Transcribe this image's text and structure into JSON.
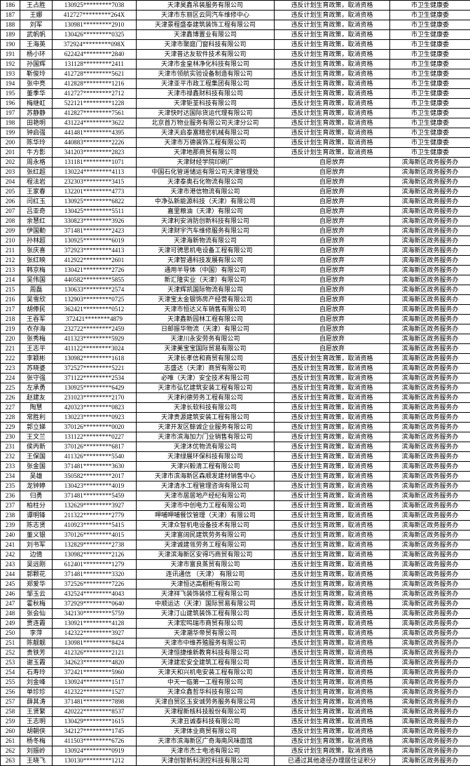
{
  "rows": [
    {
      "n": "186",
      "name": "王占胜",
      "id": "130925*********7038",
      "org": "天津昊鑫吊装服务有限公司",
      "reason": "违反计划生育政策，取消资格",
      "dept": "市卫生健康委"
    },
    {
      "n": "187",
      "name": "王娜",
      "id": "412727*********264X",
      "org": "天津市东丽区云同汽车维修中心",
      "reason": "违反计划生育政策，取消资格",
      "dept": "市卫生健康委"
    },
    {
      "n": "188",
      "name": "刘军",
      "id": "130981*********2910",
      "org": "天津景程盛泰建筑装饰工程有限公司",
      "reason": "违反计划生育政策，取消资格",
      "dept": "市卫生健康委"
    },
    {
      "n": "189",
      "name": "武帆帆",
      "id": "130426*********0325",
      "org": "天津鑫博置业有限公司",
      "reason": "违反计划生育政策，取消资格",
      "dept": "市卫生健康委"
    },
    {
      "n": "190",
      "name": "王海英",
      "id": "372924*********098X",
      "org": "天津市聚庭门窗科技有限公司",
      "reason": "违反计划生育政策，取消资格",
      "dept": "市卫生健康委"
    },
    {
      "n": "191",
      "name": "杨小环",
      "id": "622424*********2840",
      "org": "天津普达友软件技术有限公司",
      "reason": "违反计划生育政策，取消资格",
      "dept": "市卫生健康委"
    },
    {
      "n": "192",
      "name": "孙国辉",
      "id": "131128*********2411",
      "org": "天津市金皇林净化科技有限公司",
      "reason": "违反计划生育政策，取消资格",
      "dept": "市卫生健康委"
    },
    {
      "n": "193",
      "name": "靳俊玲",
      "id": "412728*********5621",
      "org": "天津市领航实验设备制造有限公司",
      "reason": "违反计划生育政策，取消资格",
      "dept": "市卫生健康委"
    },
    {
      "n": "194",
      "name": "张中亮",
      "id": "412828*********1216",
      "org": "天津亚平市政工程集团有限公司",
      "reason": "违反计划生育政策，取消资格",
      "dept": "市卫生健康委"
    },
    {
      "n": "195",
      "name": "董季华",
      "id": "412727*********2712",
      "org": "天津市禄鑫财科技有限公司",
      "reason": "违反计划生育政策，取消资格",
      "dept": "市卫生健康委"
    },
    {
      "n": "196",
      "name": "梅继虹",
      "id": "522121*********1228",
      "org": "天津钜荃科技有限公司",
      "reason": "违反计划生育政策，取消资格",
      "dept": "市卫生健康委"
    },
    {
      "n": "197",
      "name": "苏静静",
      "id": "412827*********7561",
      "org": "天津快时达国际货运代理有限公司",
      "reason": "违反计划生育政策，取消资格",
      "dept": "市卫生健康委"
    },
    {
      "n": "198",
      "name": "田艳明",
      "id": "431224*********3622",
      "org": "北京首万物业服务有限公司天津分公司",
      "reason": "违反计划生育政策，取消资格",
      "dept": "市卫生健康委"
    },
    {
      "n": "199",
      "name": "钟启强",
      "id": "441481*********4395",
      "org": "天津天启泰富精密机械有限公司",
      "reason": "违反计划生育政策，取消资格",
      "dept": "市卫生健康委"
    },
    {
      "n": "200",
      "name": "陈华玲",
      "id": "440883*********2226",
      "org": "天津市万德装饰工程有限公司",
      "reason": "违反计划生育政策，取消资格",
      "dept": "市卫生健康委"
    },
    {
      "n": "201",
      "name": "牛方影",
      "id": "341203*********2823",
      "org": "天津地那商贸有限公司",
      "reason": "违反计划生育政策，取消资格",
      "dept": "市卫生健康委"
    },
    {
      "n": "202",
      "name": "周永格",
      "id": "131181*********1071",
      "org": "天津财经学院印刷厂",
      "reason": "自愿放弃",
      "dept": "滨海新区政务服务办"
    },
    {
      "n": "203",
      "name": "张红超",
      "id": "130224*********4113",
      "org": "中国石化管道储运有限公司天津管理处",
      "reason": "自愿放弃",
      "dept": "滨海新区政务服务办"
    },
    {
      "n": "204",
      "name": "程法岩",
      "id": "232303*********3415",
      "org": "天津泰奥石化物流有限公司",
      "reason": "自愿放弃",
      "dept": "滨海新区政务服务办"
    },
    {
      "n": "205",
      "name": "王家春",
      "id": "132201*********4773",
      "org": "天津市港信物流有限公司",
      "reason": "自愿放弃",
      "dept": "滨海新区政务服务办"
    },
    {
      "n": "206",
      "name": "闫红玉",
      "id": "130925*********6822",
      "org": "中净弘新能源科技（天津）有限公司",
      "reason": "自愿放弃",
      "dept": "滨海新区政务服务办"
    },
    {
      "n": "207",
      "name": "吕亚奇",
      "id": "130425*********5511",
      "org": "嘉里粮油（天津）有限公司",
      "reason": "自愿放弃",
      "dept": "滨海新区政务服务办"
    },
    {
      "n": "208",
      "name": "余慧红",
      "id": "330823*********3926",
      "org": "天津利安消防创新科技有限公司",
      "reason": "自愿放弃",
      "dept": "滨海新区政务服务办"
    },
    {
      "n": "209",
      "name": "伊国勤",
      "id": "371481*********2423",
      "org": "天津财宇汽车维修服务有限公司",
      "reason": "自愿放弃",
      "dept": "滨海新区政务服务办"
    },
    {
      "n": "210",
      "name": "孙林超",
      "id": "130925*********6019",
      "org": "天津海新物流有限公司",
      "reason": "自愿放弃",
      "dept": "滨海新区政务服务办"
    },
    {
      "n": "211",
      "name": "张庆喜",
      "id": "372923*********4413",
      "org": "天津可骋思机电设备工程有限公司",
      "reason": "自愿放弃",
      "dept": "滨海新区政务服务办"
    },
    {
      "n": "212",
      "name": "张红映",
      "id": "412922*********2601",
      "org": "天津智通科技发展有限公司",
      "reason": "自愿放弃",
      "dept": "滨海新区政务服务办"
    },
    {
      "n": "213",
      "name": "韩京梅",
      "id": "130421*********2726",
      "org": "通用半导体（中国）有限公司",
      "reason": "自愿放弃",
      "dept": "滨海新区政务服务办"
    },
    {
      "n": "214",
      "name": "吴伟国",
      "id": "440582*********5855",
      "org": "新汇隆实业（天津）有限公司",
      "reason": "自愿放弃",
      "dept": "滨海新区政务服务办"
    },
    {
      "n": "215",
      "name": "周磊",
      "id": "130633*********2574",
      "org": "天津辉凯国际物流有限公司",
      "reason": "自愿放弃",
      "dept": "滨海新区政务服务办"
    },
    {
      "n": "216",
      "name": "吴雪欣",
      "id": "132903*********0725",
      "org": "天津宝太金银饰房产经营有限公司",
      "reason": "自愿放弃",
      "dept": "滨海新区政务服务办"
    },
    {
      "n": "217",
      "name": "胡俸民",
      "id": "362421*********0512",
      "org": "天津市恒达义车销售有限公司",
      "reason": "自愿放弃",
      "dept": "滨海新区政务服务办"
    },
    {
      "n": "218",
      "name": "王吞军",
      "id": "372421********4879",
      "org": "天津鑫新园林工程有限公司",
      "reason": "自愿放弃",
      "dept": "滨海新区政务服务办"
    },
    {
      "n": "219",
      "name": "衣存海",
      "id": "232722*********2459",
      "org": "日邮振华物流（天津）有限公司",
      "reason": "自愿放弃",
      "dept": "滨海新区政务服务办"
    },
    {
      "n": "220",
      "name": "张秀梅",
      "id": "411323*********5929",
      "org": "天津川永安劳务有限公司",
      "reason": "自愿放弃",
      "dept": "滨海新区政务服务办"
    },
    {
      "n": "221",
      "name": "王志平",
      "id": "411122*********3024",
      "org": "天津美宝宝国际贸易有限公司",
      "reason": "自愿放弃",
      "dept": "滨海新区政务服务办"
    },
    {
      "n": "222",
      "name": "李颖彬",
      "id": "130982*********1618",
      "org": "天津长孝信和商贸有限公司",
      "reason": "违反计划生育政策，取消资格",
      "dept": "滨海新区政务服务办"
    },
    {
      "n": "223",
      "name": "苏晓婆",
      "id": "372527*********5221",
      "org": "志盛达（天津）商贸有限公司",
      "reason": "违反计划生育政策，取消资格",
      "dept": "滨海新区政务服务办"
    },
    {
      "n": "224",
      "name": "张守强",
      "id": "371122*********2534",
      "org": "必唯（天津）安全技术有限公司",
      "reason": "违反计划生育政策，取消资格",
      "dept": "滨海新区政务服务办"
    },
    {
      "n": "225",
      "name": "左承勇",
      "id": "130925*********6429",
      "org": "天津市弘忆建筑安装工程有限公司",
      "reason": "违反计划生育政策，取消资格",
      "dept": "滨海新区政务服务办"
    },
    {
      "n": "226",
      "name": "赵建友",
      "id": "231023*********2170",
      "org": "天津利德劳务工程有限公司",
      "reason": "违反计划生育政策，取消资格",
      "dept": "滨海新区政务服务办"
    },
    {
      "n": "227",
      "name": "陶慧",
      "id": "420323*********0823",
      "org": "天津长软科技有限公司",
      "reason": "违反计划生育政策，取消资格",
      "dept": "滨海新区政务服务办"
    },
    {
      "n": "228",
      "name": "常胜利",
      "id": "130223*********0923",
      "org": "天津贵源建筑安装工程有限公司",
      "reason": "违反计划生育政策，取消资格",
      "dept": "滨海新区政务服务办"
    },
    {
      "n": "229",
      "name": "郭立娣",
      "id": "370126*********0020",
      "org": "天津开发区鲸诚企业服务有限公司",
      "reason": "违反计划生育政策，取消资格",
      "dept": "滨海新区政务服务办"
    },
    {
      "n": "230",
      "name": "王文兰",
      "id": "131122*********0227",
      "org": "天津市滨海加力门业销售有限公司",
      "reason": "违反计划生育政策，取消资格",
      "dept": "滨海新区政务服务办"
    },
    {
      "n": "231",
      "name": "侯丙新",
      "id": "370126*********6817",
      "org": "天津沐优物流有限公司",
      "reason": "违反计划生育政策，取消资格",
      "dept": "滨海新区政务服务办"
    },
    {
      "n": "232",
      "name": "王保国",
      "id": "411326*********5540",
      "org": "天津绿展环保科技有限公司",
      "reason": "违反计划生育政策，取消资格",
      "dept": "滨海新区政务服务办"
    },
    {
      "n": "233",
      "name": "张金国",
      "id": "371481*********3630",
      "org": "天津兴毅清工程有限公司",
      "reason": "违反计划生育政策，取消资格",
      "dept": "滨海新区政务服务办"
    },
    {
      "n": "234",
      "name": "吴雄",
      "id": "350582*********2017",
      "org": "天津市滨海新区森顺发建材销售中心",
      "reason": "违反计划生育政策，取消资格",
      "dept": "滨海新区政务服务办"
    },
    {
      "n": "235",
      "name": "龙钟婷",
      "id": "130423*********4019",
      "org": "天津清水工程管理咨询有限公司",
      "reason": "违反计划生育政策，取消资格",
      "dept": "滨海新区政务服务办"
    },
    {
      "n": "236",
      "name": "归勇",
      "id": "371481*********5459",
      "org": "天津市居居地产经纪有限公司",
      "reason": "违反计划生育政策，取消资格",
      "dept": "滨海新区政务服务办"
    },
    {
      "n": "237",
      "name": "柏柱分",
      "id": "132629*********3927",
      "org": "天津市中创电力工程有限公司",
      "reason": "违反计划生育政策，取消资格",
      "dept": "滨海新区政务服务办"
    },
    {
      "n": "238",
      "name": "谭明锋",
      "id": "211322*********2779",
      "org": "呷哺呷哺餐饮管理（天津）有限公司",
      "reason": "违反计划生育政策，取消资格",
      "dept": "滨海新区政务服务办"
    },
    {
      "n": "239",
      "name": "陈志贤",
      "id": "410923*********5415",
      "org": "天津众智机电设备技术有限公司",
      "reason": "违反计划生育政策，取消资格",
      "dept": "滨海新区政务服务办"
    },
    {
      "n": "240",
      "name": "董义银",
      "id": "370126*********4015",
      "org": "天津富阔民建筑劳务有限公司",
      "reason": "违反计划生育政策，取消资格",
      "dept": "滨海新区政务服务办"
    },
    {
      "n": "241",
      "name": "刘书军",
      "id": "132829*********2738",
      "org": "天津诚建瓴劳务工程有限公司",
      "reason": "违反计划生育政策，取消资格",
      "dept": "滨海新区政务服务办"
    },
    {
      "n": "242",
      "name": "边倩",
      "id": "130982*********2126",
      "org": "天津滨海新区安得巧商贸有限公司",
      "reason": "违反计划生育政策，取消资格",
      "dept": "滨海新区政务服务办"
    },
    {
      "n": "243",
      "name": "吴远刚",
      "id": "612401*********1279",
      "org": "天津市富良蒸贸有限公司",
      "reason": "违反计划生育政策，取消资格",
      "dept": "滨海新区政务服务办"
    },
    {
      "n": "244",
      "name": "郭颗花",
      "id": "371481*********3320",
      "org": "连讯通信 （天津） 有限公司",
      "reason": "违反计划生育政策，取消资格",
      "dept": "滨海新区政务服务办"
    },
    {
      "n": "245",
      "name": "郑爱华",
      "id": "372526*********7226",
      "org": "天津恒达高橱柜有限公司",
      "reason": "违反计划生育政策，取消资格",
      "dept": "滨海新区政务服务办"
    },
    {
      "n": "246",
      "name": "邹玉云",
      "id": "432524*********4043",
      "org": "天津祥飞装饰装修工程有限公司",
      "reason": "违反计划生育政策，取消资格",
      "dept": "滨海新区政务服务办"
    },
    {
      "n": "247",
      "name": "霍秋梅",
      "id": "372929*********0640",
      "org": "中顺运达（天津）国际贸易有限公司",
      "reason": "违反计划生育政策，取消资格",
      "dept": "滨海新区政务服务办"
    },
    {
      "n": "248",
      "name": "张会仙",
      "id": "342130*********5759",
      "org": "天津汀山建筑装饰工程有限公司",
      "reason": "违反计划生育政策，取消资格",
      "dept": "滨海新区政务服务办"
    },
    {
      "n": "249",
      "name": "贾连霞",
      "id": "130921*********4128",
      "org": "天津宏鸣瑞市商贸有限公司",
      "reason": "违反计划生育政策，取消资格",
      "dept": "滨海新区政务服务办"
    },
    {
      "n": "250",
      "name": "李萍",
      "id": "142322*********3927",
      "org": "天津潮华帝贸有限公司",
      "reason": "违反计划生育政策，取消资格",
      "dept": "滨海新区政务服务办"
    },
    {
      "n": "251",
      "name": "陈靓靓",
      "id": "130981*********8424",
      "org": "天津市中维养殖服务有限公司",
      "reason": "违反计划生育政策，取消资格",
      "dept": "滨海新区政务服务办"
    },
    {
      "n": "252",
      "name": "贵铁芳",
      "id": "412326*********2121",
      "org": "天津恒捷维新教育科技有限公司",
      "reason": "违反计划生育政策，取消资格",
      "dept": "滨海新区政务服务办"
    },
    {
      "n": "253",
      "name": "谢玉霞",
      "id": "342623*********4820",
      "org": "天津建宏安全建筑工程有限公司",
      "reason": "违反计划生育政策，取消资格",
      "dept": "滨海新区政务服务办"
    },
    {
      "n": "254",
      "name": "石寿玲",
      "id": "372421*********5960",
      "org": "天津天和兴机电安装工程有限公司",
      "reason": "违反计划生育政策，取消资格",
      "dept": "滨海新区政务服务办"
    },
    {
      "n": "255",
      "name": "刘金峰",
      "id": "130924*********1517",
      "org": "中天一临第一工程有限公司",
      "reason": "违反计划生育政策，取消资格",
      "dept": "滨海新区政务服务办"
    },
    {
      "n": "256",
      "name": "单珍珍",
      "id": "412322*********1527",
      "org": "天津众鑫哲华科技有限公司",
      "reason": "违反计划生育政策，取消资格",
      "dept": "滨海新区政务服务办"
    },
    {
      "n": "257",
      "name": "薛其涛",
      "id": "371481*********7898",
      "org": "天津自贸区玉安诚劳务服务有限公司",
      "reason": "违反计划生育政策，取消资格",
      "dept": "滨海新区政务服务办"
    },
    {
      "n": "258",
      "name": "王贤繁",
      "id": "420222*********8537",
      "org": "天津程新核科技股份有限公司",
      "reason": "违反计划生育政策，取消资格",
      "dept": "滨海新区政务服务办"
    },
    {
      "n": "259",
      "name": "王志明",
      "id": "130429*********1615",
      "org": "天津丑诚泰科技有限公司",
      "reason": "违反计划生育政策，取消资格",
      "dept": "滨海新区政务服务办"
    },
    {
      "n": "260",
      "name": "胡朝侠",
      "id": "342127*********1745",
      "org": "天津体业商贸有限公司",
      "reason": "违反计划生育政策，取消资格",
      "dept": "滨海新区政务服务办"
    },
    {
      "n": "261",
      "name": "杨冬梅",
      "id": "411503*********6726",
      "org": "天津市滨海新区广奇海南风味面馆",
      "reason": "违反计划生育政策，取消资格",
      "dept": "滨海新区政务服务办"
    },
    {
      "n": "262",
      "name": "刘振岭",
      "id": "130924*********0919",
      "org": "天津市杰士电池有限公司",
      "reason": "违反计划生育政策，取消资格",
      "dept": "滨海新区政务服务办"
    },
    {
      "n": "263",
      "name": "王晓飞",
      "id": "130130*********1212",
      "org": "天津创智新科测控科技有限公司",
      "reason": "已通过其他途径办理居住证积分",
      "dept": "滨海新区政务服务办"
    }
  ]
}
